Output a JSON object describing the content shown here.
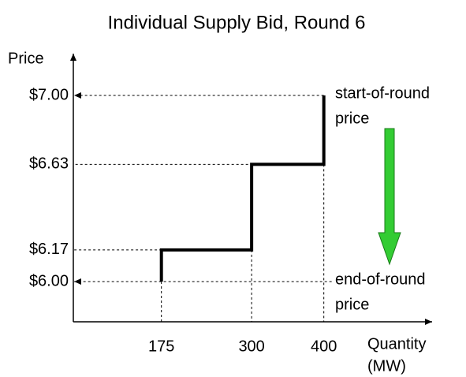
{
  "chart_data": {
    "type": "step",
    "title": "Individual Supply Bid, Round 6",
    "y_label": "Price",
    "x_label": [
      "Quantity",
      "(MW)"
    ],
    "x": [
      175,
      175,
      300,
      300,
      400,
      400
    ],
    "values": [
      6.0,
      6.17,
      6.17,
      6.63,
      6.63,
      7.0
    ],
    "color": "#000000",
    "xlim": [
      53,
      550
    ],
    "xticks": [
      175,
      300,
      400
    ],
    "ylim": [
      5.784,
      7.216
    ],
    "yticks": [
      {
        "value": 6.0,
        "label": "$6.00"
      },
      {
        "value": 6.17,
        "label": "$6.17"
      },
      {
        "value": 6.63,
        "label": "$6.63"
      },
      {
        "value": 7.0,
        "label": "$7.00"
      }
    ],
    "annotations": [
      {
        "lines": [
          "start-of-round",
          "price"
        ]
      },
      {
        "lines": [
          "end-of-round",
          "price"
        ]
      }
    ]
  }
}
